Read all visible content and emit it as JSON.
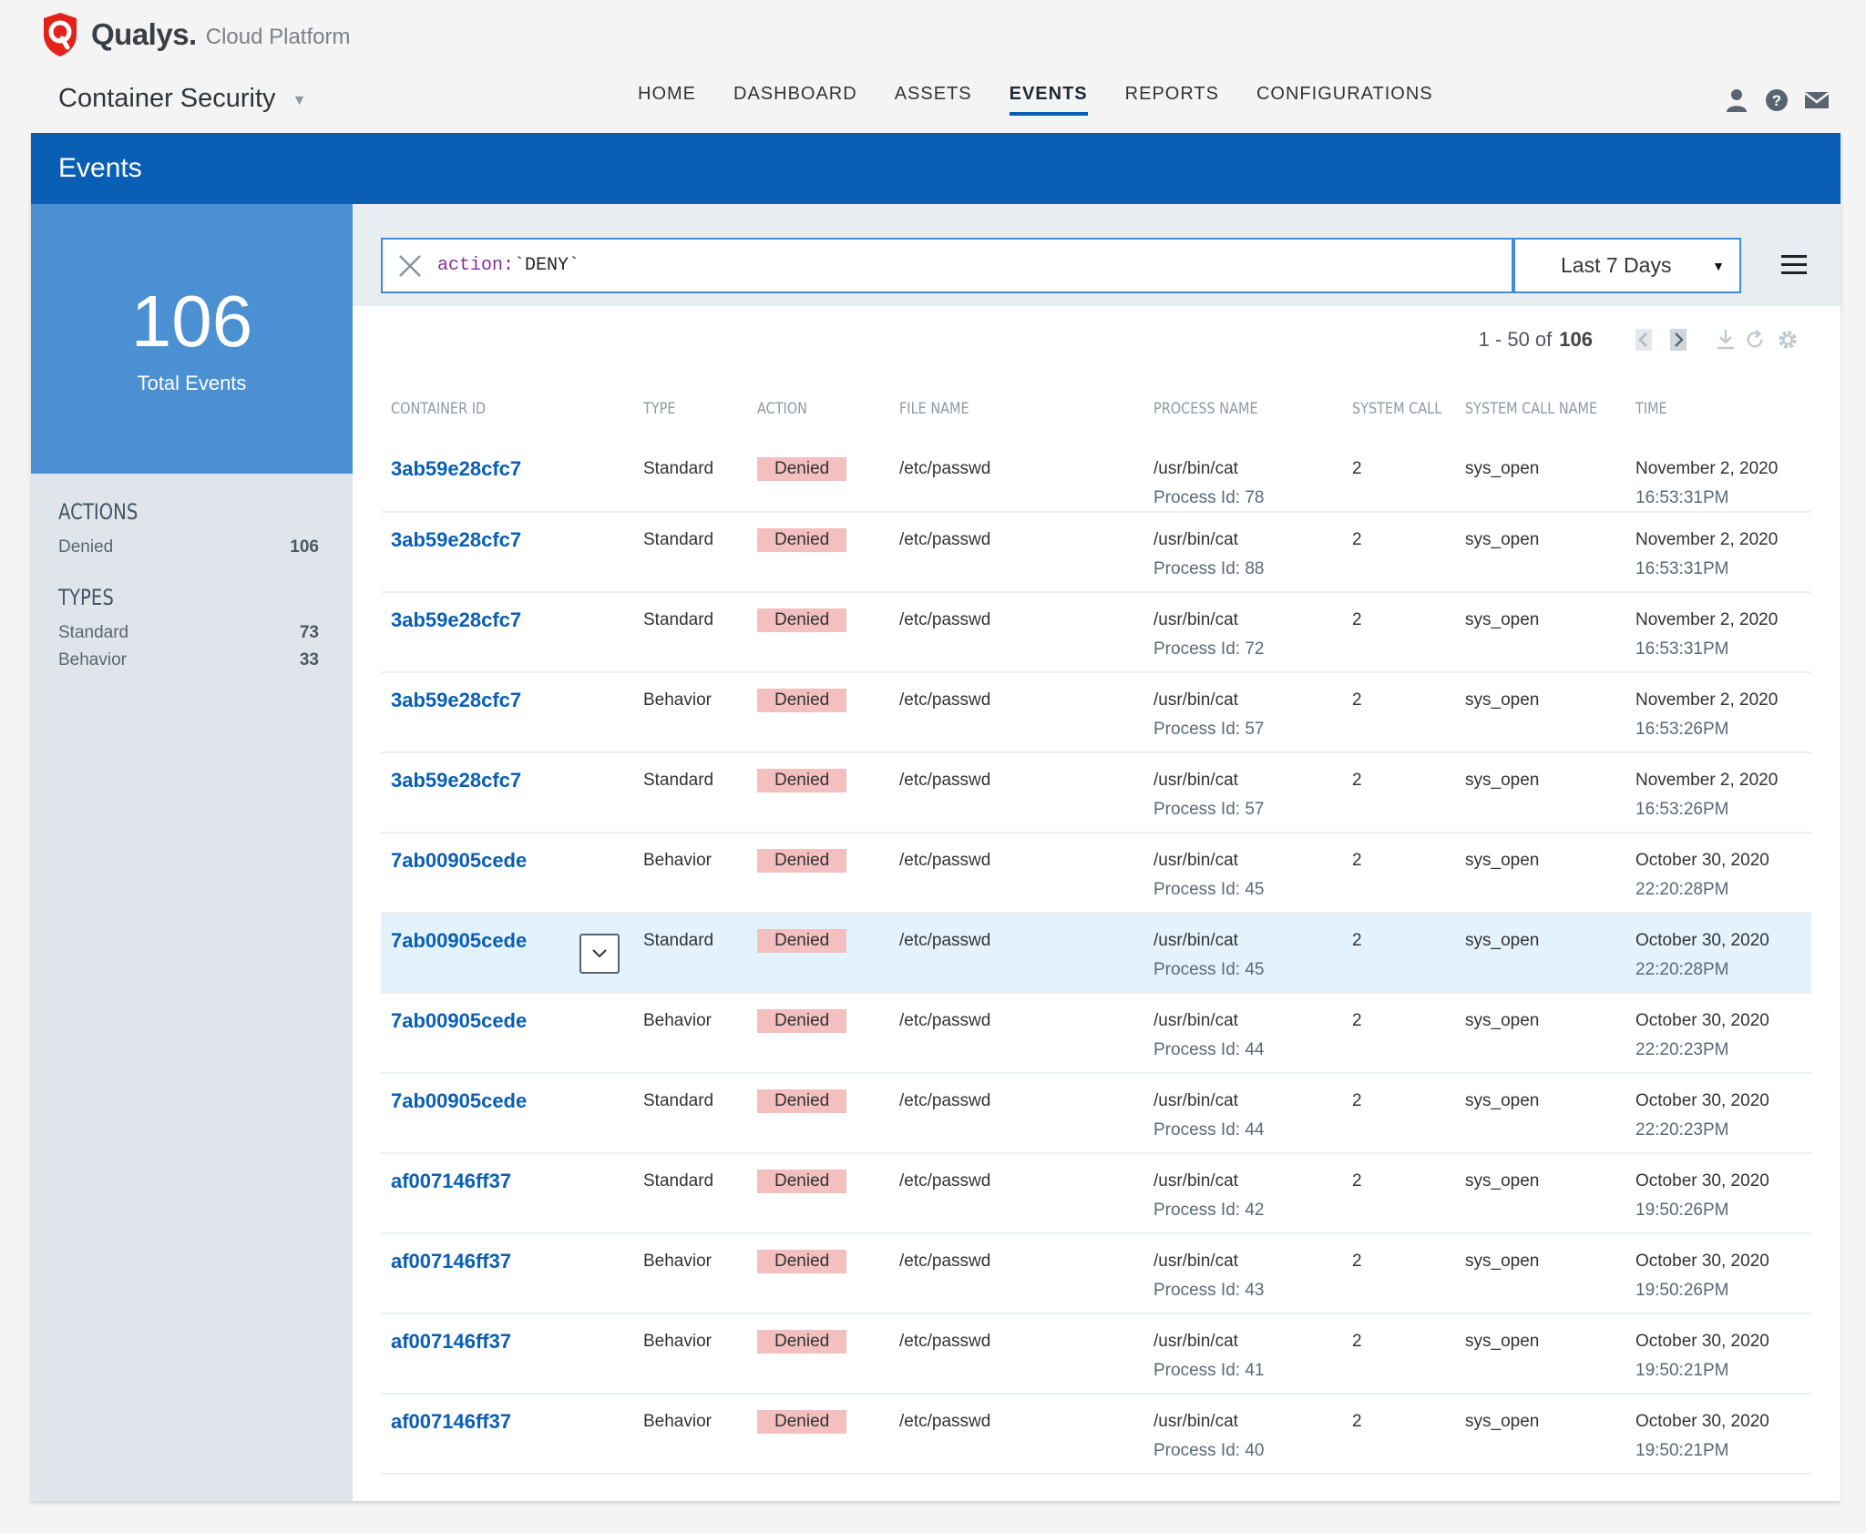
{
  "brand": {
    "name": "Qualys.",
    "subtitle": "Cloud Platform"
  },
  "app": {
    "name": "Container Security"
  },
  "nav": [
    {
      "label": "HOME",
      "active": false
    },
    {
      "label": "DASHBOARD",
      "active": false
    },
    {
      "label": "ASSETS",
      "active": false
    },
    {
      "label": "EVENTS",
      "active": true
    },
    {
      "label": "REPORTS",
      "active": false
    },
    {
      "label": "CONFIGURATIONS",
      "active": false
    }
  ],
  "top_icons": [
    "user-icon",
    "help-icon",
    "mail-icon"
  ],
  "page": {
    "title": "Events"
  },
  "summary": {
    "total": "106",
    "label": "Total Events"
  },
  "facets": {
    "actions": {
      "title": "ACTIONS",
      "items": [
        {
          "label": "Denied",
          "count": "106"
        }
      ]
    },
    "types": {
      "title": "TYPES",
      "items": [
        {
          "label": "Standard",
          "count": "73"
        },
        {
          "label": "Behavior",
          "count": "33"
        }
      ]
    }
  },
  "search": {
    "key": "action:",
    "value": "`DENY`"
  },
  "date_range": {
    "selected": "Last 7 Days"
  },
  "pager": {
    "range": "1 - 50 of",
    "total": "106"
  },
  "columns": [
    "CONTAINER ID",
    "TYPE",
    "ACTION",
    "FILE NAME",
    "PROCESS NAME",
    "SYSTEM CALL",
    "SYSTEM CALL NAME",
    "TIME"
  ],
  "colors": {
    "brand_blue": "#0a5fb4",
    "stat_blue": "#4a90d2",
    "denied_badge": "#f4bfbf",
    "row_highlight": "#e3f2fd"
  },
  "rows": [
    {
      "container_id": "3ab59e28cfc7",
      "type": "Standard",
      "action": "Denied",
      "file": "/etc/passwd",
      "process": "/usr/bin/cat",
      "process_id": "Process Id: 78",
      "syscall": "2",
      "syscall_name": "sys_open",
      "date": "November 2, 2020",
      "time": "16:53:31PM"
    },
    {
      "container_id": "3ab59e28cfc7",
      "type": "Standard",
      "action": "Denied",
      "file": "/etc/passwd",
      "process": "/usr/bin/cat",
      "process_id": "Process Id: 88",
      "syscall": "2",
      "syscall_name": "sys_open",
      "date": "November 2, 2020",
      "time": "16:53:31PM"
    },
    {
      "container_id": "3ab59e28cfc7",
      "type": "Standard",
      "action": "Denied",
      "file": "/etc/passwd",
      "process": "/usr/bin/cat",
      "process_id": "Process Id: 72",
      "syscall": "2",
      "syscall_name": "sys_open",
      "date": "November 2, 2020",
      "time": "16:53:31PM"
    },
    {
      "container_id": "3ab59e28cfc7",
      "type": "Behavior",
      "action": "Denied",
      "file": "/etc/passwd",
      "process": "/usr/bin/cat",
      "process_id": "Process Id: 57",
      "syscall": "2",
      "syscall_name": "sys_open",
      "date": "November 2, 2020",
      "time": "16:53:26PM"
    },
    {
      "container_id": "3ab59e28cfc7",
      "type": "Standard",
      "action": "Denied",
      "file": "/etc/passwd",
      "process": "/usr/bin/cat",
      "process_id": "Process Id: 57",
      "syscall": "2",
      "syscall_name": "sys_open",
      "date": "November 2, 2020",
      "time": "16:53:26PM"
    },
    {
      "container_id": "7ab00905cede",
      "type": "Behavior",
      "action": "Denied",
      "file": "/etc/passwd",
      "process": "/usr/bin/cat",
      "process_id": "Process Id: 45",
      "syscall": "2",
      "syscall_name": "sys_open",
      "date": "October 30, 2020",
      "time": "22:20:28PM"
    },
    {
      "container_id": "7ab00905cede",
      "type": "Standard",
      "action": "Denied",
      "file": "/etc/passwd",
      "process": "/usr/bin/cat",
      "process_id": "Process Id: 45",
      "syscall": "2",
      "syscall_name": "sys_open",
      "date": "October 30, 2020",
      "time": "22:20:28PM",
      "highlighted": true
    },
    {
      "container_id": "7ab00905cede",
      "type": "Behavior",
      "action": "Denied",
      "file": "/etc/passwd",
      "process": "/usr/bin/cat",
      "process_id": "Process Id: 44",
      "syscall": "2",
      "syscall_name": "sys_open",
      "date": "October 30, 2020",
      "time": "22:20:23PM"
    },
    {
      "container_id": "7ab00905cede",
      "type": "Standard",
      "action": "Denied",
      "file": "/etc/passwd",
      "process": "/usr/bin/cat",
      "process_id": "Process Id: 44",
      "syscall": "2",
      "syscall_name": "sys_open",
      "date": "October 30, 2020",
      "time": "22:20:23PM"
    },
    {
      "container_id": "af007146ff37",
      "type": "Standard",
      "action": "Denied",
      "file": "/etc/passwd",
      "process": "/usr/bin/cat",
      "process_id": "Process Id: 42",
      "syscall": "2",
      "syscall_name": "sys_open",
      "date": "October 30, 2020",
      "time": "19:50:26PM"
    },
    {
      "container_id": "af007146ff37",
      "type": "Behavior",
      "action": "Denied",
      "file": "/etc/passwd",
      "process": "/usr/bin/cat",
      "process_id": "Process Id: 43",
      "syscall": "2",
      "syscall_name": "sys_open",
      "date": "October 30, 2020",
      "time": "19:50:26PM"
    },
    {
      "container_id": "af007146ff37",
      "type": "Behavior",
      "action": "Denied",
      "file": "/etc/passwd",
      "process": "/usr/bin/cat",
      "process_id": "Process Id: 41",
      "syscall": "2",
      "syscall_name": "sys_open",
      "date": "October 30, 2020",
      "time": "19:50:21PM"
    },
    {
      "container_id": "af007146ff37",
      "type": "Behavior",
      "action": "Denied",
      "file": "/etc/passwd",
      "process": "/usr/bin/cat",
      "process_id": "Process Id: 40",
      "syscall": "2",
      "syscall_name": "sys_open",
      "date": "October 30, 2020",
      "time": "19:50:21PM"
    }
  ]
}
